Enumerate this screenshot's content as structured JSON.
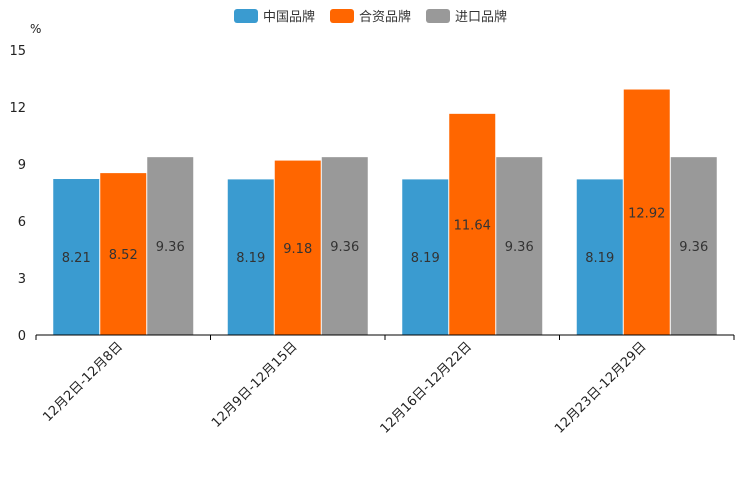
{
  "chart_data": {
    "type": "bar",
    "title": "",
    "xlabel": "",
    "ylabel": "%",
    "ylim": [
      0,
      15
    ],
    "yticks": [
      0,
      3,
      6,
      9,
      12,
      15
    ],
    "grid": false,
    "legend_position": "top-center",
    "categories": [
      "12月2日-12月8日",
      "12月9日-12月15日",
      "12月16日-12月22日",
      "12月23日-12月29日"
    ],
    "series": [
      {
        "name": "中国品牌",
        "color": "#3a9bd0",
        "values": [
          8.21,
          8.19,
          8.19,
          8.19
        ]
      },
      {
        "name": "合资品牌",
        "color": "#ff6600",
        "values": [
          8.52,
          9.18,
          11.64,
          12.92
        ]
      },
      {
        "name": "进口品牌",
        "color": "#999999",
        "values": [
          9.36,
          9.36,
          9.36,
          9.36
        ]
      }
    ]
  }
}
